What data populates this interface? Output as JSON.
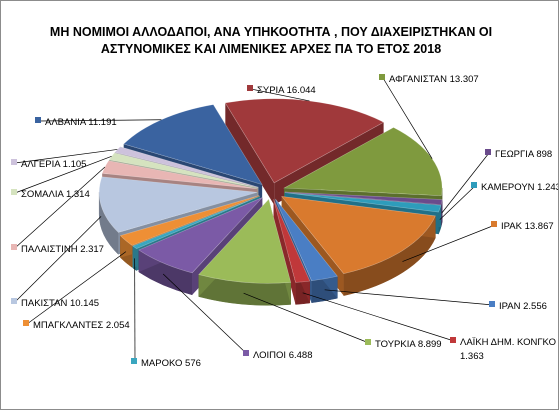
{
  "chart_data": {
    "type": "pie",
    "style": "3d-exploded",
    "title": [
      "ΜΗ ΝΟΜΙΜΟΙ ΑΛΛΟΔΑΠΟΙ, ΑΝΑ ΥΠΗΚΟΟΤΗΤΑ  , ΠΟΥ ΔΙΑΧΕΙΡΙΣΤΗΚΑΝ ΟΙ",
      "ΑΣΤΥΝΟΜΙΚΕΣ ΚΑΙ ΛΙΜΕΝΙΚΕΣ ΑΡΧΕΣ ΠΑ ΤΟ ΕΤΟΣ 2018"
    ],
    "slices": [
      {
        "name": "ΣΥΡΙΑ",
        "value": 16044,
        "label": [
          "ΣΥΡΙΑ 16.044"
        ],
        "color": "#a0393b"
      },
      {
        "name": "ΑΦΓΑΝΙΣΤΑΝ",
        "value": 13307,
        "label": [
          "ΑΦΓΑΝΙΣΤΑΝ 13.307"
        ],
        "color": "#7f9a3e"
      },
      {
        "name": "ΓΕΩΡΓΙΑ",
        "value": 898,
        "label": [
          "ΓΕΩΡΓΙΑ 898"
        ],
        "color": "#6a4b8c"
      },
      {
        "name": "ΚΑΜΕΡΟΥΝ",
        "value": 1243,
        "label": [
          "ΚΑΜΕΡΟΥΝ 1.243"
        ],
        "color": "#2e9cbb"
      },
      {
        "name": "ΙΡΑΚ",
        "value": 13867,
        "label": [
          "ΙΡΑΚ 13.867"
        ],
        "color": "#d97a2e"
      },
      {
        "name": "ΙΡΑΝ",
        "value": 2556,
        "label": [
          "ΙΡΑΝ 2.556"
        ],
        "color": "#4a7ec4"
      },
      {
        "name": "ΛΑΙΚΗ ΔΗΜ. ΚΟΝΓΚΟ",
        "value": 1363,
        "label": [
          "ΛΑΪΚΗ ΔΗΜ. ΚΟΝΓΚΟ",
          "1.363"
        ],
        "color": "#c0383a"
      },
      {
        "name": "ΤΟΥΡΚΙΑ",
        "value": 8899,
        "label": [
          "ΤΟΥΡΚΙΑ 8.899"
        ],
        "color": "#9bbb59"
      },
      {
        "name": "ΛΟΙΠΟΙ",
        "value": 6488,
        "label": [
          "ΛΟΙΠΟΙ 6.488"
        ],
        "color": "#7b5aa6"
      },
      {
        "name": "ΜΑΡΟΚΟ",
        "value": 576,
        "label": [
          "ΜΑΡΟΚΟ 576"
        ],
        "color": "#3aa6bf"
      },
      {
        "name": "ΜΠΑΓΚΛΑΝΤΕΣ",
        "value": 2054,
        "label": [
          "ΜΠΑΓΚΛΑΝΤΕΣ 2.054"
        ],
        "color": "#ee8f35"
      },
      {
        "name": "ΠΑΚΙΣΤΑΝ",
        "value": 10145,
        "label": [
          "ΠΑΚΙΣΤΑΝ 10.145"
        ],
        "color": "#b8c7e0"
      },
      {
        "name": "ΠΑΛΑΙΣΤΙΝΗ",
        "value": 2317,
        "label": [
          "ΠΑΛΑΙΣΤΙΝΗ  2.317"
        ],
        "color": "#e8b6b4"
      },
      {
        "name": "ΣΟΜΑΛΙΑ",
        "value": 1314,
        "label": [
          "ΣΟΜΑΛΙΑ 1.314"
        ],
        "color": "#d5e3bf"
      },
      {
        "name": "ΑΛΓΕΡΙΑ",
        "value": 1105,
        "label": [
          "ΑΛΓΕΡΙΑ 1.105"
        ],
        "color": "#cdc2dc"
      },
      {
        "name": "ΑΛΒΑΝΙΑ",
        "value": 11191,
        "label": [
          "ΑΛΒΑΝΙΑ 11.191"
        ],
        "color": "#3a63a0"
      }
    ]
  }
}
